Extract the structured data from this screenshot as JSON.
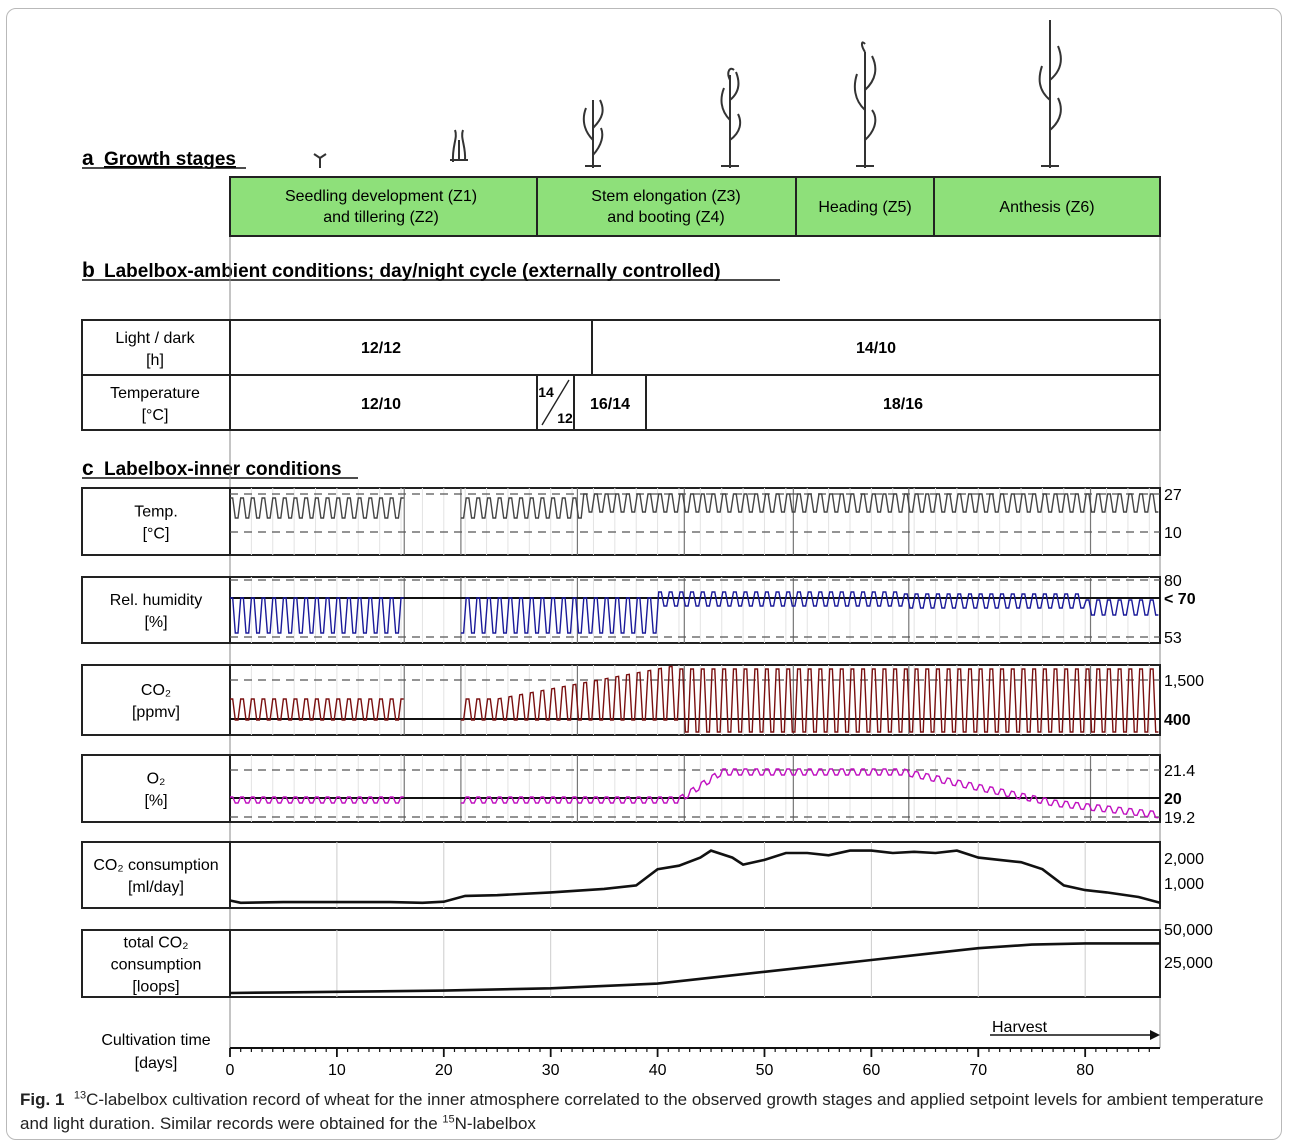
{
  "figure": {
    "sections": {
      "a": {
        "letter": "a",
        "title": "Growth stages"
      },
      "b": {
        "letter": "b",
        "title": "Labelbox-ambient conditions; day/night cycle (externally controlled)"
      },
      "c": {
        "letter": "c",
        "title": "Labelbox-inner conditions"
      }
    },
    "stages": [
      {
        "line1": "Seedling development (Z1)",
        "line2": "and tillering (Z2)"
      },
      {
        "line1": "Stem elongation (Z3)",
        "line2": "and booting (Z4)"
      },
      {
        "line1": "Heading (Z5)",
        "line2": ""
      },
      {
        "line1": "Anthesis (Z6)",
        "line2": ""
      }
    ],
    "ambient": {
      "light_label": [
        "Light / dark",
        "[h]"
      ],
      "light_values": [
        "12/12",
        "14/10"
      ],
      "temp_label": [
        "Temperature",
        "[°C]"
      ],
      "temp_values": [
        "12/10",
        "14",
        "12",
        "16/14",
        "18/16"
      ]
    },
    "inner_rows": [
      {
        "key": "temp",
        "label": [
          "Temp.",
          "[°C]"
        ],
        "ticks": [
          "27",
          "10"
        ]
      },
      {
        "key": "rh",
        "label": [
          "Rel. humidity",
          "[%]"
        ],
        "ticks": [
          "80",
          "< 70",
          "53"
        ]
      },
      {
        "key": "co2",
        "label": [
          "CO₂",
          "[ppmv]"
        ],
        "ticks": [
          "1,500",
          "400"
        ]
      },
      {
        "key": "o2",
        "label": [
          "O₂",
          "[%]"
        ],
        "ticks": [
          "21.4",
          "20",
          "19.2"
        ]
      },
      {
        "key": "co2c",
        "label": [
          "CO₂ consumption",
          "[ml/day]"
        ],
        "ticks": [
          "2,000",
          "1,000"
        ]
      },
      {
        "key": "total",
        "label": [
          "total CO₂",
          "consumption",
          "[loops]"
        ],
        "ticks": [
          "50,000",
          "25,000"
        ]
      }
    ],
    "time_axis": {
      "label": [
        "Cultivation time",
        "[days]"
      ],
      "harvest": "Harvest",
      "ticks": [
        0,
        10,
        20,
        30,
        40,
        50,
        60,
        70,
        80
      ]
    },
    "colors": {
      "stage_fill": "#8ee07a",
      "rh_line": "#1a1a9a",
      "co2_line": "#7a1010",
      "o2_line": "#c010c0",
      "temp_line": "#444444"
    }
  },
  "chart_data": [
    {
      "type": "line",
      "title": "CO₂ consumption",
      "ylabel": "[ml/day]",
      "xlabel": "Cultivation time [days]",
      "xlim": [
        0,
        87
      ],
      "ylim": [
        0,
        2500
      ],
      "x": [
        0,
        1,
        5,
        10,
        15,
        18,
        20,
        22,
        25,
        30,
        35,
        38,
        40,
        42,
        44,
        45,
        47,
        48,
        50,
        52,
        54,
        56,
        58,
        60,
        62,
        64,
        66,
        68,
        70,
        72,
        74,
        76,
        78,
        80,
        82,
        85,
        87
      ],
      "series": [
        {
          "values": [
            150,
            50,
            80,
            80,
            80,
            50,
            100,
            350,
            380,
            500,
            650,
            800,
            1500,
            1650,
            2000,
            2300,
            2000,
            1700,
            1900,
            2200,
            2200,
            2100,
            2300,
            2300,
            2200,
            2250,
            2200,
            2300,
            2000,
            1900,
            1800,
            1500,
            800,
            600,
            500,
            300,
            50
          ]
        }
      ]
    },
    {
      "type": "line",
      "title": "total CO₂ consumption",
      "ylabel": "[loops]",
      "xlabel": "Cultivation time [days]",
      "xlim": [
        0,
        87
      ],
      "ylim": [
        0,
        50000
      ],
      "x": [
        0,
        5,
        10,
        20,
        30,
        40,
        45,
        50,
        55,
        60,
        65,
        70,
        75,
        80,
        87
      ],
      "series": [
        {
          "values": [
            0,
            500,
            1000,
            2000,
            4000,
            8000,
            13000,
            18000,
            23000,
            28000,
            33000,
            38000,
            41000,
            42000,
            42000
          ]
        }
      ]
    },
    {
      "type": "line",
      "title": "Temp.",
      "ylabel": "[°C]",
      "ylim": [
        10,
        27
      ],
      "x": [
        0,
        16,
        22,
        87
      ],
      "series": [
        {
          "values": [
            20,
            20,
            20,
            24
          ]
        }
      ]
    },
    {
      "type": "line",
      "title": "Rel. humidity",
      "ylabel": "[%]",
      "ylim": [
        53,
        80
      ],
      "x": [
        0,
        16,
        22,
        63,
        87
      ],
      "series": [
        {
          "values": [
            62,
            62,
            62,
            70,
            66
          ]
        }
      ]
    },
    {
      "type": "line",
      "title": "CO₂",
      "ylabel": "[ppmv]",
      "ylim": [
        0,
        1500
      ],
      "x": [
        0,
        16,
        22,
        42,
        87
      ],
      "series": [
        {
          "values": [
            400,
            500,
            400,
            900,
            700
          ]
        }
      ]
    },
    {
      "type": "line",
      "title": "O₂",
      "ylabel": "[%]",
      "ylim": [
        19.2,
        21.4
      ],
      "x": [
        0,
        16,
        22,
        42,
        46,
        63,
        77,
        87
      ],
      "series": [
        {
          "values": [
            20,
            20,
            20,
            20.3,
            21.4,
            21.4,
            20.5,
            19.3
          ]
        }
      ]
    }
  ]
}
